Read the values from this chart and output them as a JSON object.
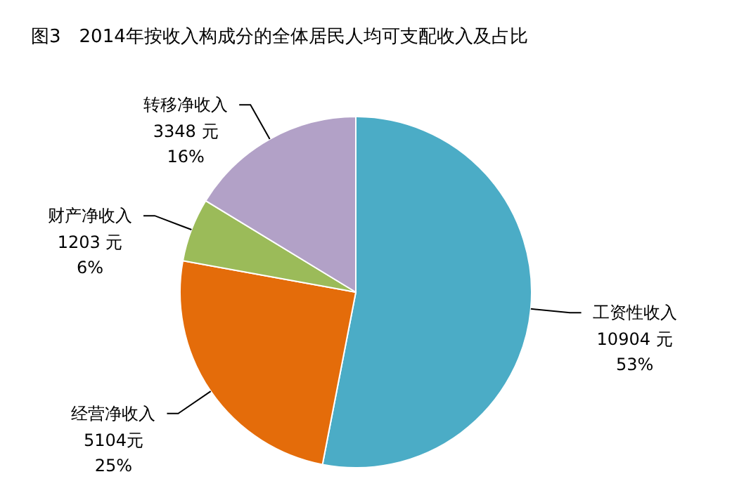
{
  "chart_data": {
    "type": "pie",
    "title": "图3　2014年按收入构成分的全体居民人均可支配收入及占比",
    "categories": [
      "工资性收入",
      "经营净收入",
      "财产净收入",
      "转移净收入"
    ],
    "values": [
      10904,
      5104,
      1203,
      3348
    ],
    "value_labels": [
      "10904 元\n53%",
      "5104元\n25%",
      "1203 元\n6%",
      "3348 元\n16%"
    ],
    "colors": [
      "#4bacc6",
      "#e46c0a",
      "#9bbb59",
      "#b2a1c7"
    ]
  }
}
